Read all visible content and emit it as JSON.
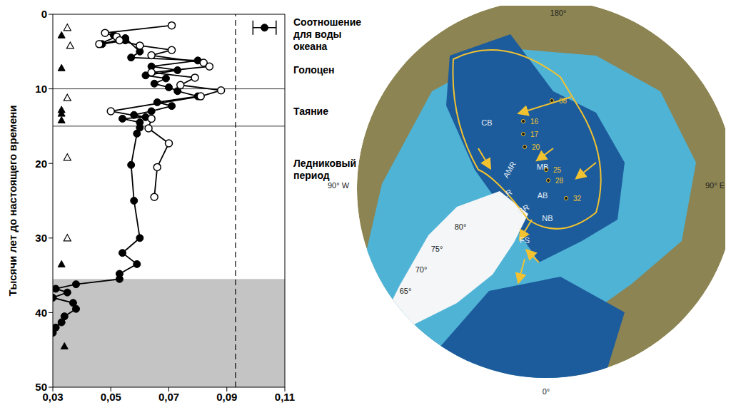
{
  "chart_data": {
    "type": "scatter",
    "y_label": "Тысячи лет до настоящего времени",
    "xlim": [
      0.03,
      0.11
    ],
    "ylim": [
      0,
      50
    ],
    "xticks": [
      {
        "value": 0.03,
        "label": "0,03"
      },
      {
        "value": 0.05,
        "label": "0,05"
      },
      {
        "value": 0.07,
        "label": "0,07"
      },
      {
        "value": 0.09,
        "label": "0,09"
      },
      {
        "value": 0.11,
        "label": "0,11"
      }
    ],
    "yticks": [
      0,
      10,
      20,
      30,
      40,
      50
    ],
    "series": [
      {
        "color": "#000000",
        "marker": "filled_circle",
        "line_style": "solid",
        "x": [
          0.051,
          0.055,
          0.047,
          0.055,
          0.06,
          0.057,
          0.08,
          0.064,
          0.073,
          0.062,
          0.069,
          0.065,
          0.07,
          0.073,
          0.08,
          0.066,
          0.071,
          0.064,
          0.058,
          0.062,
          0.054,
          0.06,
          0.06,
          0.059,
          0.057,
          0.058,
          0.06,
          0.054,
          0.059,
          0.053,
          0.053,
          0.038,
          0.031,
          0.035,
          0.03,
          0.037,
          0.038,
          0.034,
          0.033,
          0.031,
          0.03
        ],
        "y": [
          2.8,
          3.5,
          4.0,
          3.2,
          5.0,
          5.8,
          6.2,
          7.0,
          7.5,
          8.2,
          8.6,
          9.3,
          9.8,
          10.3,
          11.0,
          11.8,
          12.3,
          13.0,
          13.5,
          13.8,
          14.0,
          14.5,
          15.2,
          16.0,
          20.2,
          25.0,
          30.0,
          32.0,
          33.5,
          34.8,
          35.5,
          36.2,
          36.8,
          37.3,
          38.0,
          38.7,
          39.5,
          40.5,
          41.3,
          42.0,
          42.7
        ]
      },
      {
        "color": "#000000",
        "marker": "open_circle",
        "line_style": "solid",
        "x": [
          0.071,
          0.048,
          0.052,
          0.046,
          0.053,
          0.06,
          0.071,
          0.064,
          0.082,
          0.084,
          0.064,
          0.079,
          0.074,
          0.088,
          0.081,
          0.05,
          0.064,
          0.063,
          0.07,
          0.066,
          0.065
        ],
        "y": [
          1.5,
          2.5,
          3.0,
          4.0,
          3.5,
          4.2,
          4.8,
          5.5,
          6.5,
          7.0,
          7.8,
          8.5,
          9.5,
          10.2,
          11.0,
          13.0,
          14.0,
          15.3,
          17.3,
          20.5,
          24.5
        ]
      },
      {
        "color": "#000000",
        "marker": "filled_triangle",
        "line_style": "none",
        "x": [
          0.033,
          0.033,
          0.033,
          0.033,
          0.033,
          0.033,
          0.034
        ],
        "y": [
          2.8,
          7.2,
          12.8,
          13.3,
          14.2,
          33.5,
          44.5
        ]
      },
      {
        "color": "#000000",
        "marker": "open_triangle",
        "line_style": "none",
        "x": [
          0.035,
          0.036,
          0.035,
          0.035,
          0.035
        ],
        "y": [
          1.8,
          4.2,
          11.2,
          19.2,
          30.0
        ]
      },
      {
        "color": "#000000",
        "marker": "filled_circle",
        "line_style": "none",
        "x": [
          0.103
        ],
        "y": [
          1.8
        ],
        "x_error": [
          0.004
        ]
      }
    ],
    "reference_lines": {
      "y": [
        10,
        15
      ],
      "x": [
        0.093
      ]
    },
    "shaded_y": [
      35.5,
      50
    ],
    "annotations": [
      {
        "text": "Соотношение для воды океана",
        "y": 0.6
      },
      {
        "text": "Голоцен",
        "y": 7
      },
      {
        "text": "Таяние",
        "y": 12.5
      },
      {
        "text": "Ледниковый период",
        "y": 19.5
      }
    ]
  },
  "map": {
    "degree_labels": [
      "180°",
      "90° W",
      "90° E",
      "0°",
      "80°",
      "75°",
      "70°",
      "65°"
    ],
    "region_labels": [
      "CB",
      "AMR",
      "MB",
      "LR",
      "AB",
      "GR",
      "NB",
      "FS"
    ],
    "core_labels": [
      "08",
      "16",
      "17",
      "20",
      "25",
      "28",
      "32"
    ]
  }
}
